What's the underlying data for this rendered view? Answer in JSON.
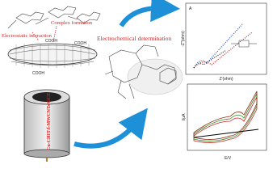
{
  "labels": {
    "complex_formation": "Complex formation",
    "electrostatic_interaction": "Electrostatic interaction",
    "electrochemical_determination": "Electrochemical determination",
    "cooh": [
      "COOH",
      "COOH",
      "COOH"
    ],
    "electrode": "Cu-CHIT/f-MWCNTs/GCE"
  },
  "plots": [
    {
      "panel": "A",
      "xlabel": "Z'(ohm)",
      "ylabel": "-Z''(ohm)"
    },
    {
      "xlabel": "E/V",
      "ylabel": "I/μA"
    }
  ]
}
